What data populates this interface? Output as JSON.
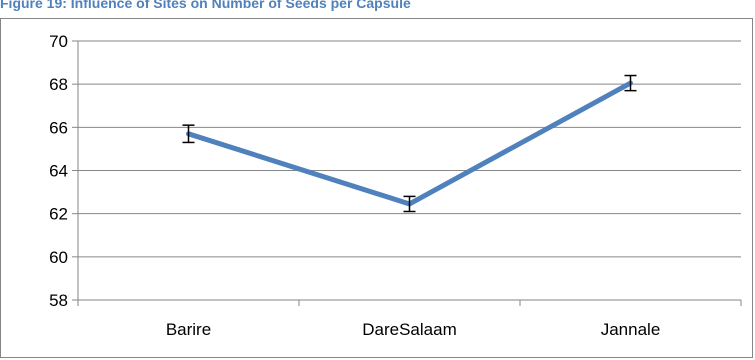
{
  "figure": {
    "title": "Figure 19: Influence of Sites on Number of Seeds per Capsule",
    "title_color": "#4f81bd"
  },
  "chart_data": {
    "type": "line",
    "title": "",
    "xlabel": "",
    "ylabel": "",
    "categories": [
      "Barire",
      "DareSalaam",
      "Jannale"
    ],
    "series": [
      {
        "values": [
          65.7,
          62.45,
          68.05
        ],
        "error": [
          0.4,
          0.35,
          0.35
        ],
        "color": "#4f81bd"
      }
    ],
    "ylim": [
      58,
      70
    ],
    "yticks": [
      58,
      60,
      62,
      64,
      66,
      68,
      70
    ],
    "grid": true,
    "legend": "none",
    "gridline_color": "#868686"
  }
}
